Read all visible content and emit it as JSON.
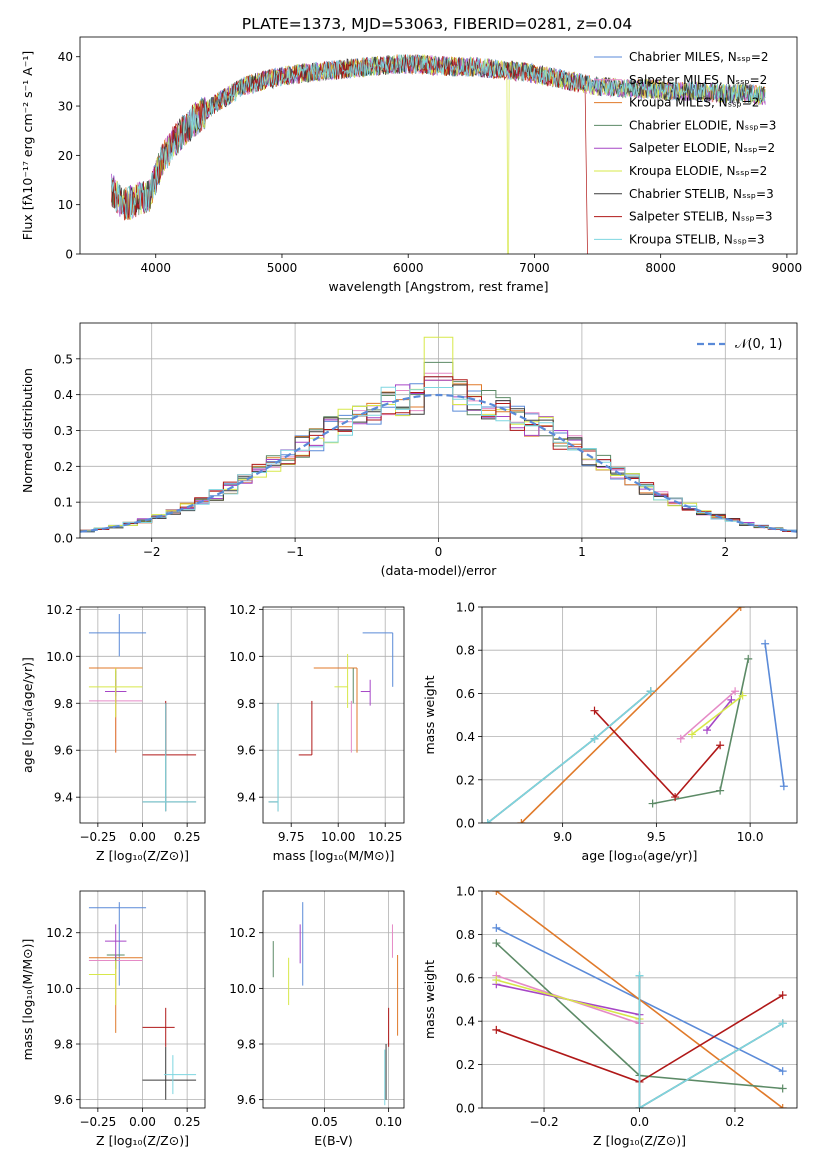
{
  "figure_title": "PLATE=1373, MJD=53063, FIBERID=0281, z=0.04",
  "colors": {
    "Chabrier MILES": "#5a8ad8",
    "Salpeter MILES": "#e58ac6",
    "Kroupa MILES": "#e07a2a",
    "Chabrier ELODIE": "#5c8a66",
    "Salpeter ELODIE": "#a646c6",
    "Kroupa ELODIE": "#d7e84a",
    "Chabrier STELIB": "#3a3a3a",
    "Salpeter STELIB": "#b01818",
    "Kroupa STELIB": "#7ed6e0"
  },
  "chart_data": [
    {
      "id": "spectrum",
      "type": "line",
      "xlabel": "wavelength [Angstrom, rest frame]",
      "ylabel": "Flux [fλ10⁻¹⁷ erg cm⁻² s⁻¹ A⁻¹]",
      "xlim": [
        3400,
        9080
      ],
      "ylim": [
        0,
        44
      ],
      "xticks": [
        4000,
        5000,
        6000,
        7000,
        8000,
        9000
      ],
      "yticks": [
        0,
        10,
        20,
        30,
        40
      ],
      "grid": false,
      "legend": "right",
      "continuum": {
        "x": [
          3650,
          3750,
          3850,
          3950,
          4050,
          4150,
          4300,
          4500,
          4700,
          4900,
          5100,
          5300,
          5500,
          5700,
          5900,
          6100,
          6300,
          6500,
          6700,
          6900,
          7100,
          7300,
          7500,
          7700,
          7900,
          8100,
          8300,
          8500,
          8700,
          8830
        ],
        "y": [
          13,
          10,
          11,
          12,
          19,
          23,
          27,
          31,
          34,
          35.5,
          36.5,
          37,
          37.5,
          38,
          38.5,
          38.5,
          38,
          38,
          37.5,
          37,
          36,
          35,
          34,
          33.5,
          33.5,
          33,
          33,
          32.5,
          32.5,
          32
        ]
      },
      "series": [
        {
          "name": "Chabrier MILES, N_SSP=2"
        },
        {
          "name": "Salpeter MILES, N_SSP=2"
        },
        {
          "name": "Kroupa MILES, N_SSP=2"
        },
        {
          "name": "Chabrier ELODIE, N_SSP=3"
        },
        {
          "name": "Salpeter ELODIE, N_SSP=2"
        },
        {
          "name": "Kroupa ELODIE, N_SSP=2"
        },
        {
          "name": "Chabrier STELIB, N_SSP=3"
        },
        {
          "name": "Salpeter STELIB, N_SSP=3"
        },
        {
          "name": "Kroupa STELIB, N_SSP=3"
        }
      ]
    },
    {
      "id": "residuals",
      "type": "histogram",
      "xlabel": "(data-model)/error",
      "ylabel": "Normed distribution",
      "xlim": [
        -2.5,
        2.5
      ],
      "ylim": [
        0,
        0.6
      ],
      "xticks": [
        -2,
        -1,
        0,
        1,
        2
      ],
      "yticks": [
        0.0,
        0.1,
        0.2,
        0.3,
        0.4,
        0.5
      ],
      "grid": true,
      "legend": "top-right",
      "reference_curve": {
        "name": "𝒩(0, 1)",
        "mean": 0,
        "sigma": 1
      },
      "bin_width": 0.1,
      "series_peaks": [
        0.45,
        0.46,
        0.44,
        0.49,
        0.44,
        0.56,
        0.42,
        0.45,
        0.42
      ]
    },
    {
      "id": "age-vs-Z",
      "type": "scatter",
      "xlabel": "Z [log₁₀(Z/Z⊙)]",
      "ylabel": "age  [log₁₀(age/yr)]",
      "xlim": [
        -0.35,
        0.35
      ],
      "ylim": [
        9.29,
        10.21
      ],
      "xticks": [
        -0.25,
        0.0,
        0.25
      ],
      "yticks": [
        9.4,
        9.6,
        9.8,
        10.0,
        10.2
      ],
      "grid": true,
      "points": [
        {
          "x": -0.13,
          "xerr": [
            0.17,
            0.15
          ],
          "y": 10.1,
          "yerr": [
            0.1,
            0.08
          ]
        },
        {
          "x": -0.15,
          "xerr": [
            0.15,
            0.15
          ],
          "y": 9.81,
          "yerr": [
            0.22,
            0.0
          ]
        },
        {
          "x": -0.15,
          "xerr": [
            0.15,
            0.15
          ],
          "y": 9.95,
          "yerr": [
            0.36,
            0.0
          ]
        },
        {
          "x": -0.15,
          "xerr": [
            0.0,
            0.0
          ],
          "y": 9.89,
          "yerr": [
            0.06,
            0.05
          ]
        },
        {
          "x": -0.15,
          "xerr": [
            0.06,
            0.06
          ],
          "y": 9.85,
          "yerr": [
            0.05,
            0.05
          ]
        },
        {
          "x": -0.15,
          "xerr": [
            0.15,
            0.15
          ],
          "y": 9.87,
          "yerr": [
            0.13,
            0.08
          ]
        },
        {
          "x": 0.13,
          "xerr": [
            0.13,
            0.17
          ],
          "y": 9.38,
          "yerr": [
            0.04,
            0.42
          ]
        },
        {
          "x": 0.13,
          "xerr": [
            0.13,
            0.17
          ],
          "y": 9.58,
          "yerr": [
            0.0,
            0.23
          ]
        },
        {
          "x": 0.13,
          "xerr": [
            0.13,
            0.17
          ],
          "y": 9.38,
          "yerr": [
            0.04,
            0.42
          ]
        }
      ]
    },
    {
      "id": "age-vs-mass",
      "type": "scatter",
      "xlabel": "mass [log₁₀(M/M⊙)]",
      "ylabel": "",
      "xlim": [
        9.6,
        10.35
      ],
      "ylim": [
        9.29,
        10.21
      ],
      "xticks": [
        9.75,
        10.0,
        10.25
      ],
      "yticks": [
        9.4,
        9.6,
        9.8,
        10.0,
        10.2
      ],
      "grid": true,
      "points": [
        {
          "x": 10.29,
          "xerr": [
            0.16,
            0.0
          ],
          "y": 10.1,
          "yerr": [
            0.23,
            0.0
          ]
        },
        {
          "x": 10.07,
          "xerr": [
            0.0,
            0.0
          ],
          "y": 9.81,
          "yerr": [
            0.22,
            0.0
          ]
        },
        {
          "x": 10.1,
          "xerr": [
            0.23,
            0.0
          ],
          "y": 9.95,
          "yerr": [
            0.36,
            0.0
          ]
        },
        {
          "x": 10.08,
          "xerr": [
            0.0,
            0.0
          ],
          "y": 9.89,
          "yerr": [
            0.09,
            0.06
          ]
        },
        {
          "x": 10.17,
          "xerr": [
            0.05,
            0.0
          ],
          "y": 9.85,
          "yerr": [
            0.06,
            0.05
          ]
        },
        {
          "x": 10.05,
          "xerr": [
            0.07,
            0.0
          ],
          "y": 9.87,
          "yerr": [
            0.09,
            0.14
          ]
        },
        {
          "x": 9.68,
          "xerr": [
            0.05,
            0.0
          ],
          "y": 9.38,
          "yerr": [
            0.04,
            0.42
          ]
        },
        {
          "x": 9.86,
          "xerr": [
            0.07,
            0.0
          ],
          "y": 9.58,
          "yerr": [
            0.0,
            0.23
          ]
        },
        {
          "x": 9.68,
          "xerr": [
            0.05,
            0.0
          ],
          "y": 9.38,
          "yerr": [
            0.04,
            0.42
          ]
        }
      ]
    },
    {
      "id": "weight-vs-age",
      "type": "line",
      "xlabel": "age  [log₁₀(age/yr)]",
      "ylabel": "mass weight",
      "xlim": [
        8.57,
        10.25
      ],
      "ylim": [
        0,
        1
      ],
      "xticks": [
        9.0,
        9.5,
        10.0
      ],
      "yticks": [
        0.0,
        0.2,
        0.4,
        0.6,
        0.8,
        1.0
      ],
      "grid": true,
      "series": [
        {
          "x": [
            10.08,
            10.18
          ],
          "y": [
            0.83,
            0.17
          ]
        },
        {
          "x": [
            9.63,
            9.92
          ],
          "y": [
            0.39,
            0.61
          ]
        },
        {
          "x": [
            8.78,
            9.95
          ],
          "y": [
            0.0,
            1.0
          ]
        },
        {
          "x": [
            9.48,
            9.84,
            9.99
          ],
          "y": [
            0.09,
            0.15,
            0.76
          ]
        },
        {
          "x": [
            9.77,
            9.9
          ],
          "y": [
            0.43,
            0.57
          ]
        },
        {
          "x": [
            9.69,
            9.96
          ],
          "y": [
            0.41,
            0.59
          ]
        },
        {
          "x": [
            8.6,
            9.17,
            9.47
          ],
          "y": [
            0.0,
            0.39,
            0.61
          ]
        },
        {
          "x": [
            9.17,
            9.6,
            9.84
          ],
          "y": [
            0.52,
            0.12,
            0.36
          ]
        },
        {
          "x": [
            8.6,
            9.17,
            9.47
          ],
          "y": [
            0.0,
            0.39,
            0.61
          ]
        }
      ]
    },
    {
      "id": "mass-vs-Z",
      "type": "scatter",
      "xlabel": "Z [log₁₀(Z/Z⊙)]",
      "ylabel": "mass [log₁₀(M/M⊙)]",
      "xlim": [
        -0.35,
        0.35
      ],
      "ylim": [
        9.57,
        10.35
      ],
      "xticks": [
        -0.25,
        0.0,
        0.25
      ],
      "yticks": [
        9.6,
        9.8,
        10.0,
        10.2
      ],
      "grid": true,
      "points": [
        {
          "x": -0.13,
          "xerr": [
            0.17,
            0.15
          ],
          "y": 10.29,
          "yerr": [
            0.28,
            0.02
          ]
        },
        {
          "x": -0.15,
          "xerr": [
            0.15,
            0.15
          ],
          "y": 10.1,
          "yerr": [
            0.0,
            0.0
          ]
        },
        {
          "x": -0.15,
          "xerr": [
            0.15,
            0.15
          ],
          "y": 10.11,
          "yerr": [
            0.27,
            0.0
          ]
        },
        {
          "x": -0.15,
          "xerr": [
            0.05,
            0.05
          ],
          "y": 10.12,
          "yerr": [
            0.05,
            0.0
          ]
        },
        {
          "x": -0.15,
          "xerr": [
            0.06,
            0.06
          ],
          "y": 10.17,
          "yerr": [
            0.06,
            0.06
          ]
        },
        {
          "x": -0.15,
          "xerr": [
            0.15,
            0.0
          ],
          "y": 10.05,
          "yerr": [
            0.11,
            0.05
          ]
        },
        {
          "x": 0.13,
          "xerr": [
            0.13,
            0.17
          ],
          "y": 9.67,
          "yerr": [
            0.07,
            0.12
          ]
        },
        {
          "x": 0.13,
          "xerr": [
            0.13,
            0.05
          ],
          "y": 9.86,
          "yerr": [
            0.07,
            0.07
          ]
        },
        {
          "x": 0.17,
          "xerr": [
            0.05,
            0.13
          ],
          "y": 9.69,
          "yerr": [
            0.07,
            0.07
          ]
        }
      ]
    },
    {
      "id": "mass-vs-EBV",
      "type": "scatter",
      "xlabel": "E(B-V)",
      "ylabel": "",
      "xlim": [
        0.002,
        0.112
      ],
      "ylim": [
        9.57,
        10.35
      ],
      "xticks": [
        0.05,
        0.1
      ],
      "yticks": [
        9.6,
        9.8,
        10.0,
        10.2
      ],
      "grid": true,
      "points": [
        {
          "x": 0.033,
          "xerr": [
            0.0,
            0.0
          ],
          "y": 10.16,
          "yerr": [
            0.15,
            0.15
          ]
        },
        {
          "x": 0.103,
          "xerr": [
            0.0,
            0.0
          ],
          "y": 10.11,
          "yerr": [
            0.0,
            0.12
          ]
        },
        {
          "x": 0.107,
          "xerr": [
            0.0,
            0.0
          ],
          "y": 10.0,
          "yerr": [
            0.17,
            0.12
          ]
        },
        {
          "x": 0.01,
          "xerr": [
            0.0,
            0.0
          ],
          "y": 10.1,
          "yerr": [
            0.06,
            0.07
          ]
        },
        {
          "x": 0.031,
          "xerr": [
            0.0,
            0.0
          ],
          "y": 10.16,
          "yerr": [
            0.07,
            0.07
          ]
        },
        {
          "x": 0.022,
          "xerr": [
            0.0,
            0.0
          ],
          "y": 10.05,
          "yerr": [
            0.11,
            0.06
          ]
        },
        {
          "x": 0.098,
          "xerr": [
            0.0,
            0.0
          ],
          "y": 9.7,
          "yerr": [
            0.1,
            0.1
          ]
        },
        {
          "x": 0.1,
          "xerr": [
            0.0,
            0.0
          ],
          "y": 9.86,
          "yerr": [
            0.07,
            0.07
          ]
        },
        {
          "x": 0.097,
          "xerr": [
            0.0,
            0.0
          ],
          "y": 9.68,
          "yerr": [
            0.1,
            0.1
          ]
        }
      ]
    },
    {
      "id": "weight-vs-Z",
      "type": "line",
      "xlabel": "Z [log₁₀(Z/Z⊙)]",
      "ylabel": "mass weight",
      "xlim": [
        -0.33,
        0.33
      ],
      "ylim": [
        0,
        1
      ],
      "xticks": [
        -0.2,
        0.0,
        0.2
      ],
      "yticks": [
        0.0,
        0.2,
        0.4,
        0.6,
        0.8,
        1.0
      ],
      "grid": true,
      "series": [
        {
          "x": [
            -0.3,
            0.3
          ],
          "y": [
            0.83,
            0.17
          ]
        },
        {
          "x": [
            -0.3,
            0.0
          ],
          "y": [
            0.61,
            0.39
          ]
        },
        {
          "x": [
            -0.3,
            0.3
          ],
          "y": [
            1.0,
            0.0
          ]
        },
        {
          "x": [
            -0.3,
            0.0,
            0.3
          ],
          "y": [
            0.76,
            0.15,
            0.09
          ]
        },
        {
          "x": [
            -0.3,
            0.0
          ],
          "y": [
            0.57,
            0.43
          ]
        },
        {
          "x": [
            -0.3,
            0.0
          ],
          "y": [
            0.59,
            0.41
          ]
        },
        {
          "x": [
            0.0,
            0.0,
            0.3
          ],
          "y": [
            0.61,
            0.0,
            0.39
          ]
        },
        {
          "x": [
            -0.3,
            0.0,
            0.3
          ],
          "y": [
            0.36,
            0.12,
            0.52
          ]
        },
        {
          "x": [
            0.0,
            0.0,
            0.3
          ],
          "y": [
            0.61,
            0.0,
            0.39
          ]
        }
      ]
    }
  ]
}
